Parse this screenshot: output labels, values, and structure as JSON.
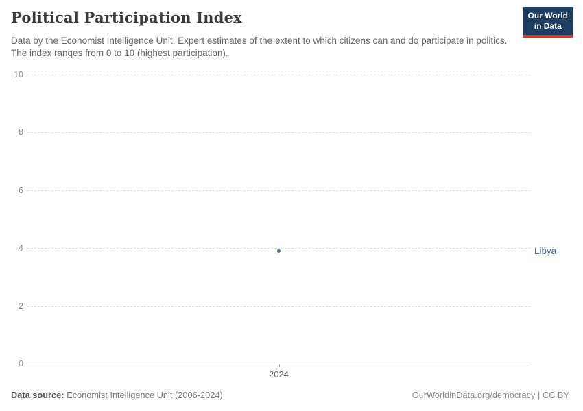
{
  "header": {
    "title": "Political Participation Index",
    "subtitle": "Data by the Economist Intelligence Unit. Expert estimates of the extent to which citizens can and do participate in politics. The index ranges from 0 to 10 (highest participation).",
    "logo": {
      "line1": "Our World",
      "line2": "in Data"
    }
  },
  "chart_data": {
    "type": "scatter",
    "title": "Political Participation Index",
    "x": [
      2024
    ],
    "series": [
      {
        "name": "Libya",
        "values": [
          3.89
        ]
      }
    ],
    "xticks": [
      "2024"
    ],
    "yticks": [
      0,
      2,
      4,
      6,
      8,
      10
    ],
    "ylim": [
      0,
      10
    ],
    "xlabel": "",
    "ylabel": "",
    "grid": "horizontal-dashed",
    "legend": "entity-label-right-of-point",
    "point_color": "#4c6a9c"
  },
  "footer": {
    "source_label": "Data source:",
    "source_text": " Economist Intelligence Unit (2006-2024)",
    "credit": "OurWorldinData.org/democracy | CC BY"
  },
  "colors": {
    "accent": "#4c6a9c",
    "logo_background": "#1d3d63",
    "logo_underline": "#d6382e",
    "gridline": "#dedede",
    "axis_line": "#a5a5a5",
    "tick_label": "#898989"
  }
}
